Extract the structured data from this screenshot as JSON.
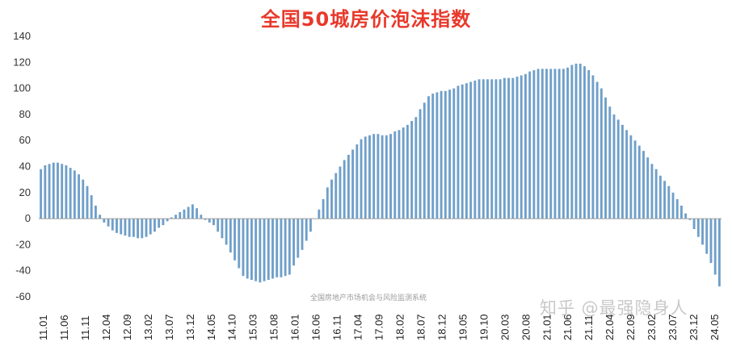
{
  "chart_data": {
    "type": "bar",
    "title": "全国50城房价泡沫指数",
    "xlabel": "",
    "ylabel": "",
    "ylim": [
      -60,
      140
    ],
    "yticks": [
      140,
      120,
      100,
      80,
      60,
      40,
      20,
      0,
      -20,
      -40,
      -60
    ],
    "grid": false,
    "legend": "none",
    "bar_color": "#6f9fc9",
    "title_color": "#e8392b",
    "xtick_labels": [
      "11.01",
      "11.06",
      "11.11",
      "12.04",
      "12.09",
      "13.02",
      "13.07",
      "13.12",
      "14.05",
      "14.10",
      "15.03",
      "15.08",
      "16.01",
      "16.06",
      "16.11",
      "17.04",
      "17.09",
      "18.02",
      "18.07",
      "18.12",
      "19.05",
      "19.10",
      "20.03",
      "20.08",
      "21.01",
      "21.06",
      "21.11",
      "22.04",
      "22.09",
      "23.02",
      "23.07",
      "23.12",
      "24.05"
    ],
    "values": [
      38,
      41,
      42,
      43,
      43,
      42,
      41,
      39,
      37,
      34,
      30,
      25,
      18,
      10,
      3,
      -3,
      -6,
      -9,
      -11,
      -12,
      -13,
      -14,
      -14,
      -15,
      -15,
      -14,
      -12,
      -10,
      -7,
      -5,
      -2,
      1,
      3,
      5,
      7,
      9,
      11,
      8,
      3,
      -1,
      -3,
      -5,
      -10,
      -15,
      -20,
      -26,
      -32,
      -38,
      -44,
      -46,
      -47,
      -48,
      -49,
      -48,
      -47,
      -46,
      -45,
      -45,
      -44,
      -43,
      -36,
      -30,
      -24,
      -17,
      -10,
      0,
      7,
      15,
      24,
      30,
      35,
      40,
      45,
      49,
      53,
      57,
      61,
      63,
      64,
      65,
      65,
      64,
      64,
      65,
      67,
      68,
      70,
      72,
      75,
      78,
      84,
      89,
      94,
      96,
      97,
      98,
      98,
      99,
      100,
      102,
      103,
      104,
      105,
      106,
      107,
      107,
      107,
      107,
      107,
      107,
      108,
      108,
      108,
      109,
      110,
      111,
      113,
      114,
      115,
      115,
      115,
      115,
      115,
      115,
      115,
      116,
      118,
      119,
      119,
      117,
      114,
      110,
      105,
      100,
      93,
      86,
      80,
      76,
      72,
      68,
      64,
      60,
      56,
      52,
      47,
      42,
      38,
      33,
      29,
      25,
      20,
      15,
      10,
      4,
      -1,
      -8,
      -14,
      -20,
      -27,
      -34,
      -43,
      -52
    ]
  },
  "source_note": "全国房地产市场机会与风险监测系统",
  "watermark": "知乎 @最强隐身人"
}
